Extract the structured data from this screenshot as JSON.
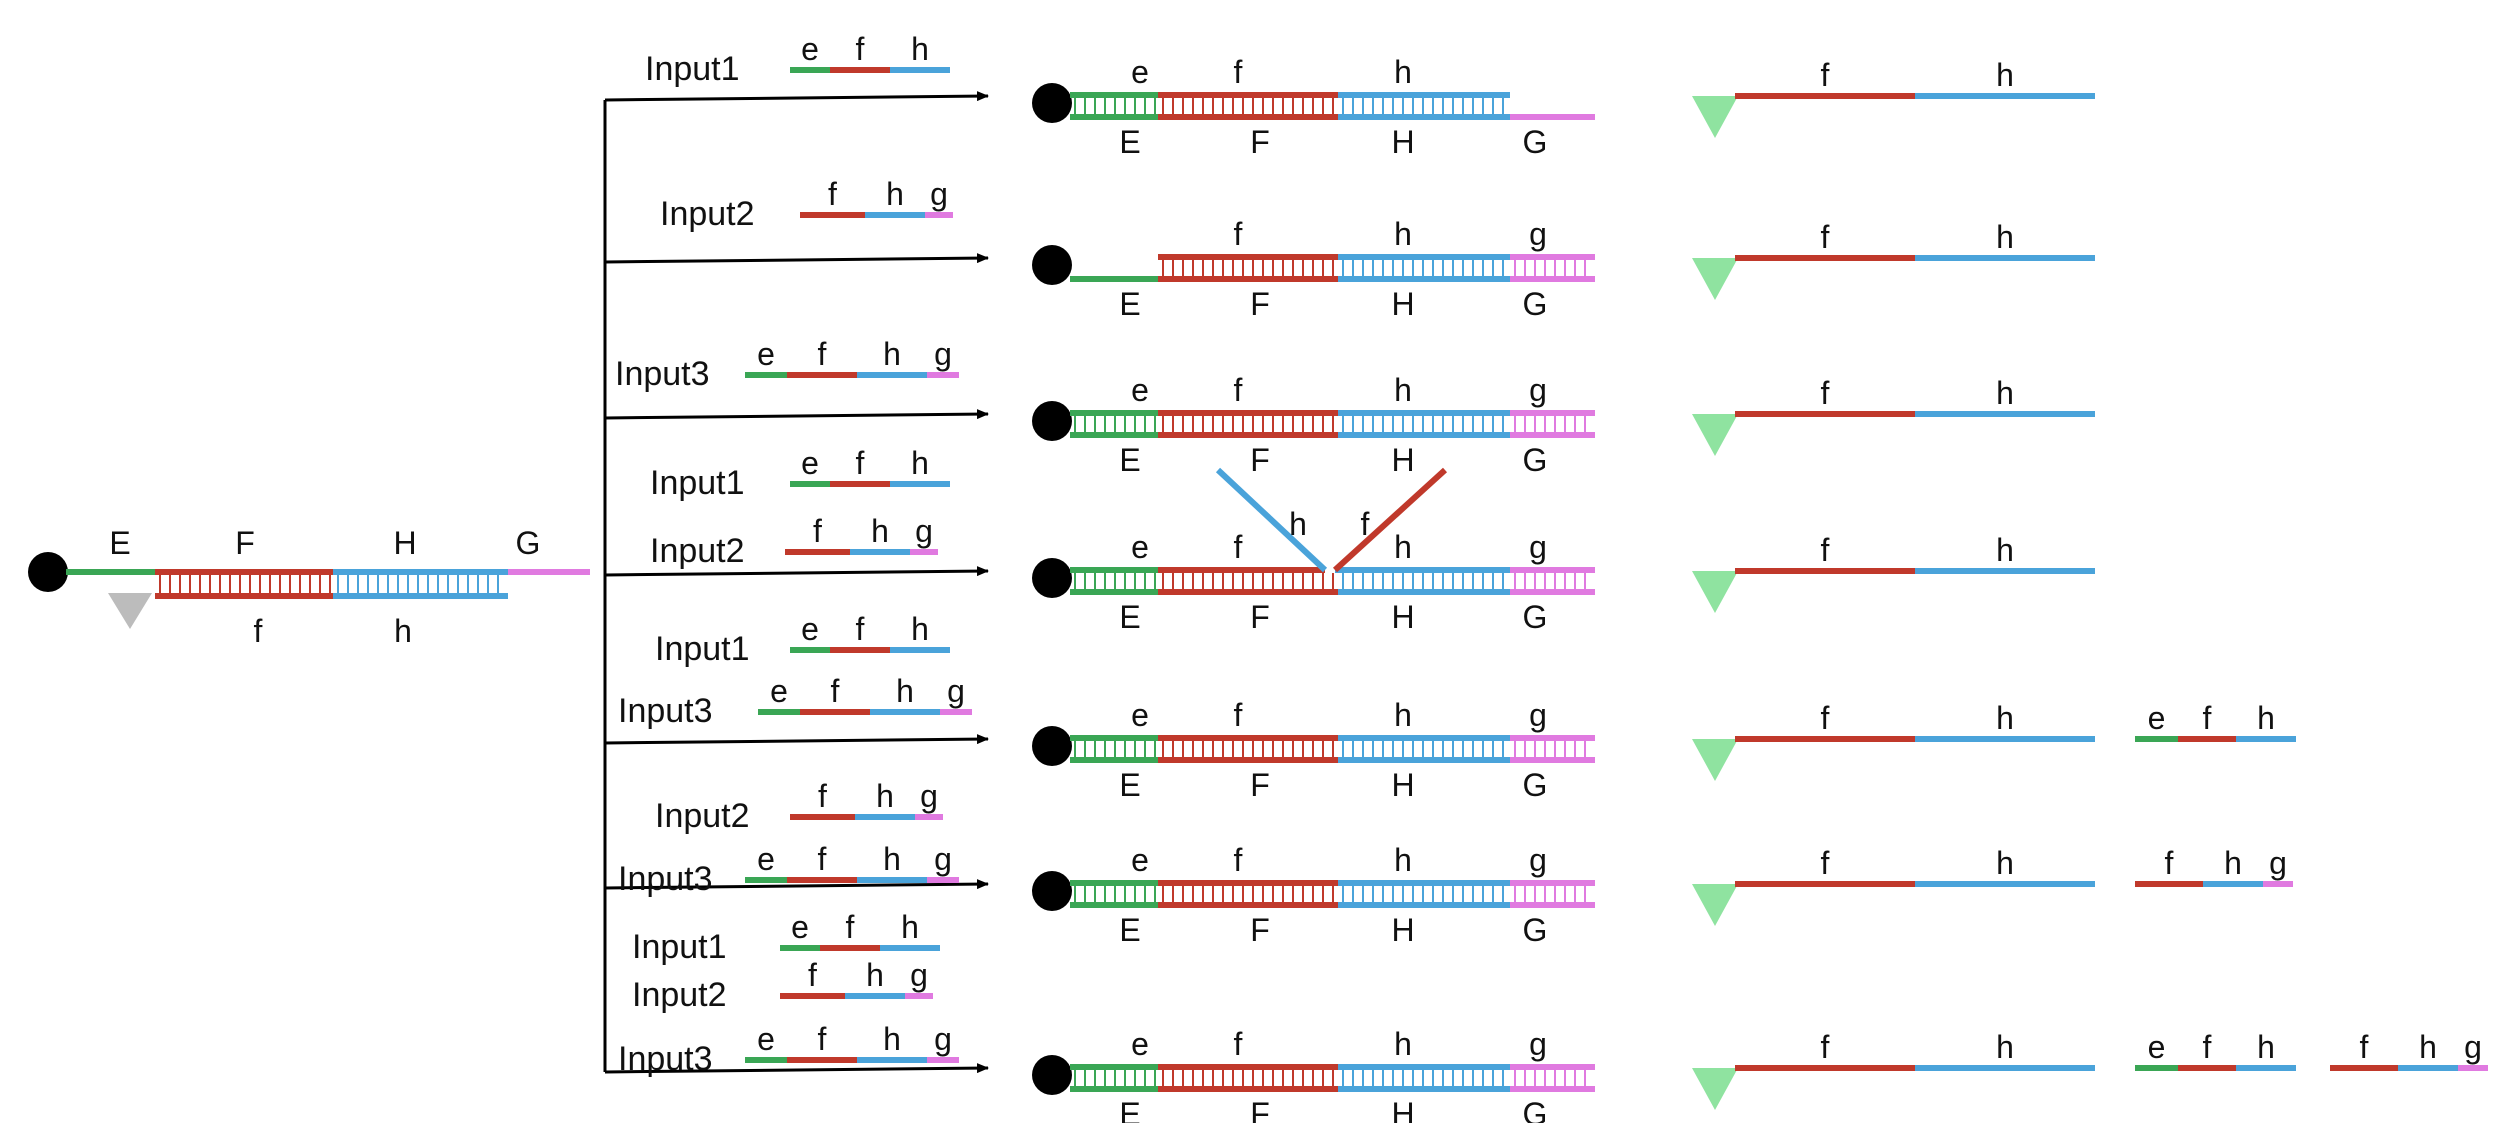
{
  "colors": {
    "green": "#3aa655",
    "red": "#c0392b",
    "blue": "#4aa3da",
    "pink": "#e07ae0",
    "black": "#000000",
    "gray_triangle": "#bcbcbc",
    "green_triangle": "#8fe3a0"
  },
  "icons": {
    "circle": "black-circle-icon",
    "gray_triangle": "gray-triangle-icon",
    "green_triangle": "green-triangle-icon"
  },
  "initial": {
    "top_labels": [
      "E",
      "F",
      "H",
      "G"
    ],
    "bottom_labels": [
      "f",
      "h"
    ]
  },
  "rows": [
    {
      "inputs": [
        {
          "label": "Input1",
          "strand": "efh",
          "segment_labels": [
            "e",
            "f",
            "h"
          ]
        }
      ],
      "product": {
        "top_labels": [
          "e",
          "f",
          "h"
        ],
        "bottom_labels": [
          "E",
          "F",
          "H",
          "G"
        ]
      },
      "released": [
        {
          "strand": "fh",
          "segment_labels": [
            "f",
            "h"
          ]
        }
      ]
    },
    {
      "inputs": [
        {
          "label": "Input2",
          "strand": "fhg",
          "segment_labels": [
            "f",
            "h",
            "g"
          ]
        }
      ],
      "product": {
        "top_labels": [
          "f",
          "h",
          "g"
        ],
        "bottom_labels": [
          "E",
          "F",
          "H",
          "G"
        ]
      },
      "released": [
        {
          "strand": "fh",
          "segment_labels": [
            "f",
            "h"
          ]
        }
      ]
    },
    {
      "inputs": [
        {
          "label": "Input3",
          "strand": "efhg",
          "segment_labels": [
            "e",
            "f",
            "h",
            "g"
          ]
        }
      ],
      "product": {
        "top_labels": [
          "e",
          "f",
          "h",
          "g"
        ],
        "bottom_labels": [
          "E",
          "F",
          "H",
          "G"
        ]
      },
      "released": [
        {
          "strand": "fh",
          "segment_labels": [
            "f",
            "h"
          ]
        }
      ]
    },
    {
      "inputs": [
        {
          "label": "Input1",
          "strand": "efh",
          "segment_labels": [
            "e",
            "f",
            "h"
          ]
        },
        {
          "label": "Input2",
          "strand": "fhg",
          "segment_labels": [
            "f",
            "h",
            "g"
          ]
        }
      ],
      "product": {
        "top_labels": [
          "e",
          "f",
          "h",
          "g"
        ],
        "bottom_labels": [
          "E",
          "F",
          "H",
          "G"
        ],
        "branch_labels": [
          "h",
          "f"
        ]
      },
      "released": [
        {
          "strand": "fh",
          "segment_labels": [
            "f",
            "h"
          ]
        }
      ]
    },
    {
      "inputs": [
        {
          "label": "Input1",
          "strand": "efh",
          "segment_labels": [
            "e",
            "f",
            "h"
          ]
        },
        {
          "label": "Input3",
          "strand": "efhg",
          "segment_labels": [
            "e",
            "f",
            "h",
            "g"
          ]
        }
      ],
      "product": {
        "top_labels": [
          "e",
          "f",
          "h",
          "g"
        ],
        "bottom_labels": [
          "E",
          "F",
          "H",
          "G"
        ]
      },
      "released": [
        {
          "strand": "fh",
          "segment_labels": [
            "f",
            "h"
          ]
        },
        {
          "strand": "efh",
          "segment_labels": [
            "e",
            "f",
            "h"
          ]
        }
      ]
    },
    {
      "inputs": [
        {
          "label": "Input2",
          "strand": "fhg",
          "segment_labels": [
            "f",
            "h",
            "g"
          ]
        },
        {
          "label": "Input3",
          "strand": "efhg",
          "segment_labels": [
            "e",
            "f",
            "h",
            "g"
          ]
        }
      ],
      "product": {
        "top_labels": [
          "e",
          "f",
          "h",
          "g"
        ],
        "bottom_labels": [
          "E",
          "F",
          "H",
          "G"
        ]
      },
      "released": [
        {
          "strand": "fh",
          "segment_labels": [
            "f",
            "h"
          ]
        },
        {
          "strand": "fhg",
          "segment_labels": [
            "f",
            "h",
            "g"
          ]
        }
      ]
    },
    {
      "inputs": [
        {
          "label": "Input1",
          "strand": "efh",
          "segment_labels": [
            "e",
            "f",
            "h"
          ]
        },
        {
          "label": "Input2",
          "strand": "fhg",
          "segment_labels": [
            "f",
            "h",
            "g"
          ]
        },
        {
          "label": "Input3",
          "strand": "efhg",
          "segment_labels": [
            "e",
            "f",
            "h",
            "g"
          ]
        }
      ],
      "product": {
        "top_labels": [
          "e",
          "f",
          "h",
          "g"
        ],
        "bottom_labels": [
          "E",
          "F",
          "H",
          "G"
        ]
      },
      "released": [
        {
          "strand": "fh",
          "segment_labels": [
            "f",
            "h"
          ]
        },
        {
          "strand": "efh",
          "segment_labels": [
            "e",
            "f",
            "h"
          ]
        },
        {
          "strand": "fhg",
          "segment_labels": [
            "f",
            "h",
            "g"
          ]
        }
      ]
    }
  ]
}
